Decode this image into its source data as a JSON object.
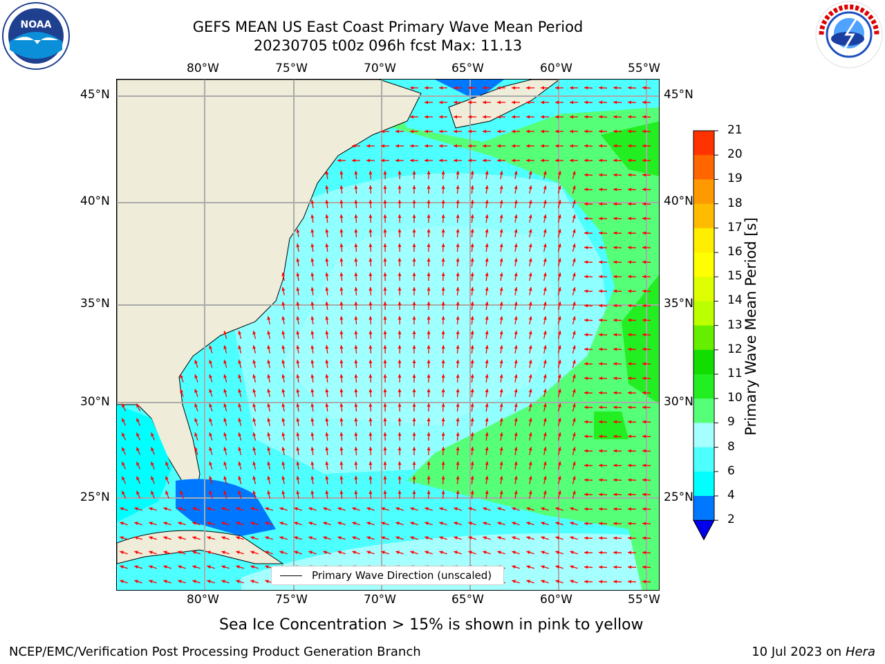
{
  "title_line1": "GEFS MEAN US East Coast Primary Wave Mean Period",
  "title_line2": "20230705 t00z 096h fcst   Max: 11.13",
  "logos": {
    "left": "noara-logo",
    "left_text": "NOAA",
    "right": "national-weather-service-logo"
  },
  "map": {
    "lon_labels": [
      "80°W",
      "75°W",
      "70°W",
      "65°W",
      "60°W",
      "55°W"
    ],
    "lat_labels": [
      "45°N",
      "40°N",
      "35°N",
      "30°N",
      "25°N"
    ],
    "legend_label": "Primary Wave Direction (unscaled)",
    "arrow_color": "#ff0000",
    "land_color": "#efedd9",
    "ocean_colors": {
      "4-6": "#00ffff",
      "6-8": "#4dffff",
      "8-9": "#a6ffff",
      "9-10": "#55ff77",
      "10-11": "#22ee22",
      "2-4": "#0077ff"
    }
  },
  "colorbar": {
    "label": "Primary Wave Mean Period [s]",
    "ticks": [
      "2",
      "4",
      "6",
      "8",
      "9",
      "10",
      "11",
      "12",
      "13",
      "14",
      "15",
      "16",
      "17",
      "18",
      "19",
      "20",
      "21"
    ],
    "colors": [
      "#0077ff",
      "#00ffff",
      "#4dffff",
      "#a6ffff",
      "#55ff77",
      "#22ee22",
      "#11dd00",
      "#66ee00",
      "#bbff00",
      "#ddff00",
      "#ffff00",
      "#ffee00",
      "#ffbb00",
      "#ff9900",
      "#ff6600",
      "#ff3300"
    ],
    "extend_color": "#0000ee"
  },
  "caption": "Sea Ice Concentration > 15% is shown in pink to yellow",
  "footer_left": "NCEP/EMC/Verification Post Processing Product Generation Branch",
  "footer_right_date": "10 Jul 2023 on ",
  "footer_right_host": "Hera"
}
